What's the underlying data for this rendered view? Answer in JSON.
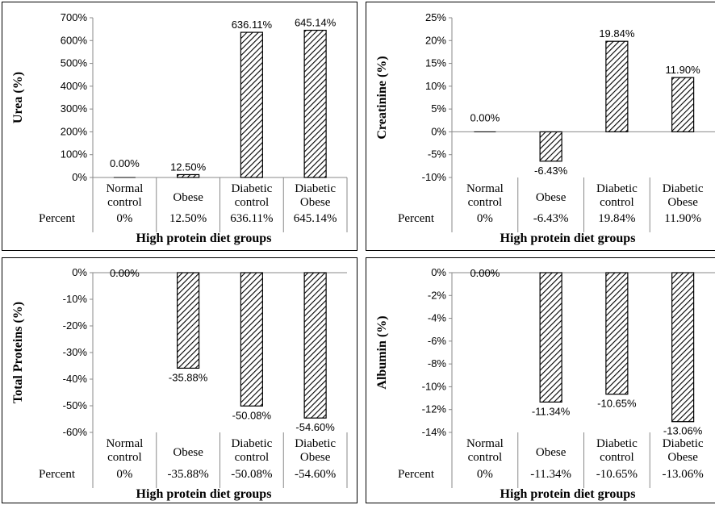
{
  "chart_data": [
    {
      "type": "bar",
      "categories": [
        [
          "Normal",
          "control"
        ],
        [
          "Obese"
        ],
        [
          "Diabetic",
          "control"
        ],
        [
          "Diabetic",
          "Obese"
        ]
      ],
      "values": [
        0,
        12.5,
        636.11,
        645.14
      ],
      "data_labels": [
        "0.00%",
        "12.50%",
        "636.11%",
        "645.14%"
      ],
      "ylabel": "Urea (%)",
      "xlabel": "High protein diet groups",
      "ylim": [
        0,
        700
      ],
      "yticks": [
        0,
        100,
        200,
        300,
        400,
        500,
        600,
        700
      ],
      "tick_format": "%",
      "table_row_label": "Percent",
      "table_values": [
        "0%",
        "12.50%",
        "636.11%",
        "645.14%"
      ],
      "grid": false,
      "pattern": "diagonal-hatch"
    },
    {
      "type": "bar",
      "categories": [
        [
          "Normal",
          "control"
        ],
        [
          "Obese"
        ],
        [
          "Diabetic",
          "control"
        ],
        [
          "Diabetic",
          "Obese"
        ]
      ],
      "values": [
        0,
        -6.43,
        19.84,
        11.9
      ],
      "data_labels": [
        "0.00%",
        "-6.43%",
        "19.84%",
        "11.90%"
      ],
      "ylabel": "Creatinine (%)",
      "xlabel": "High protein diet groups",
      "ylim": [
        -10,
        25
      ],
      "yticks": [
        -10,
        -5,
        0,
        5,
        10,
        15,
        20,
        25
      ],
      "tick_format": "%",
      "table_row_label": "Percent",
      "table_values": [
        "0%",
        "-6.43%",
        "19.84%",
        "11.90%"
      ],
      "grid": false,
      "pattern": "diagonal-hatch"
    },
    {
      "type": "bar",
      "categories": [
        [
          "Normal",
          "control"
        ],
        [
          "Obese"
        ],
        [
          "Diabetic",
          "control"
        ],
        [
          "Diabetic",
          "Obese"
        ]
      ],
      "values": [
        0,
        -35.88,
        -50.08,
        -54.6
      ],
      "data_labels": [
        "0.00%",
        "-35.88%",
        "-50.08%",
        "-54.60%"
      ],
      "ylabel": "Total Proteins (%)",
      "xlabel": "High protein diet groups",
      "ylim": [
        -60,
        0
      ],
      "yticks": [
        -60,
        -50,
        -40,
        -30,
        -20,
        -10,
        0
      ],
      "tick_format": "%",
      "table_row_label": "Percent",
      "table_values": [
        "0%",
        "-35.88%",
        "-50.08%",
        "-54.60%"
      ],
      "grid": false,
      "pattern": "diagonal-hatch"
    },
    {
      "type": "bar",
      "categories": [
        [
          "Normal",
          "control"
        ],
        [
          "Obese"
        ],
        [
          "Diabetic",
          "control"
        ],
        [
          "Diabetic",
          "Obese"
        ]
      ],
      "values": [
        0,
        -11.34,
        -10.65,
        -13.06
      ],
      "data_labels": [
        "0.00%",
        "-11.34%",
        "-10.65%",
        "-13.06%"
      ],
      "ylabel": "Albumin (%)",
      "xlabel": "High protein diet groups",
      "ylim": [
        -14,
        0
      ],
      "yticks": [
        -14,
        -12,
        -10,
        -8,
        -6,
        -4,
        -2,
        0
      ],
      "tick_format": "%",
      "table_row_label": "Percent",
      "table_values": [
        "0%",
        "-11.34%",
        "-10.65%",
        "-13.06%"
      ],
      "grid": false,
      "pattern": "diagonal-hatch"
    }
  ]
}
